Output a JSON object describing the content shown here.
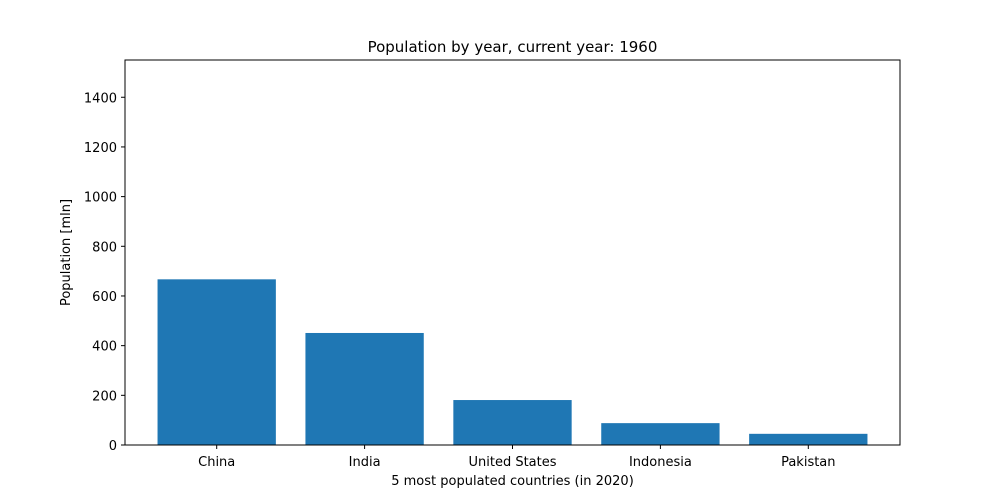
{
  "chart_data": {
    "type": "bar",
    "title": "Population by year, current year: 1960",
    "xlabel": "5 most populated countries (in 2020)",
    "ylabel": "Population [mln]",
    "categories": [
      "China",
      "India",
      "United States",
      "Indonesia",
      "Pakistan"
    ],
    "values": [
      667,
      451,
      181,
      88,
      45
    ],
    "ylim": [
      0,
      1550
    ],
    "yticks": [
      0,
      200,
      400,
      600,
      800,
      1000,
      1200,
      1400
    ],
    "bar_color": "#1f77b4",
    "grid": false,
    "legend": "none"
  }
}
